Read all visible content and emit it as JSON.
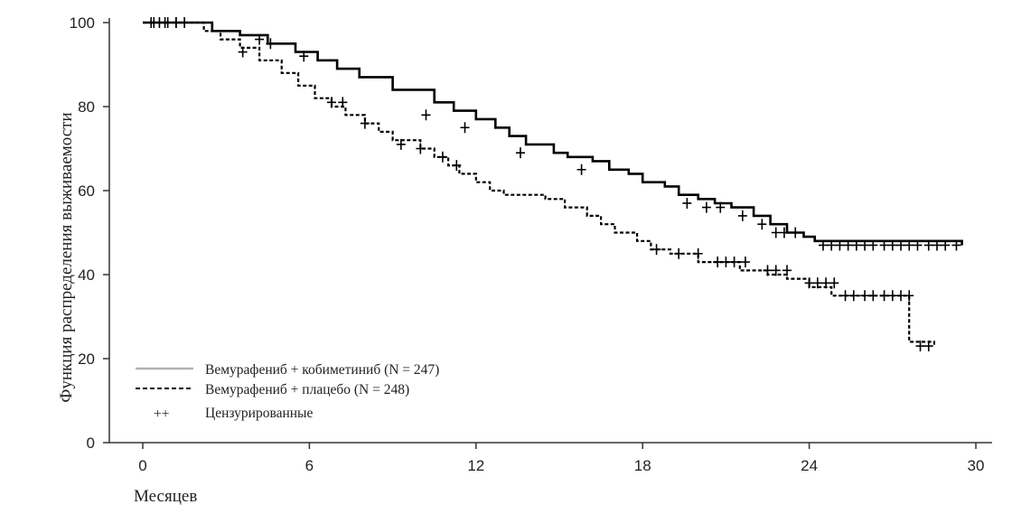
{
  "chart_data": {
    "type": "line",
    "ylabel": "Функция распределения выживаемости",
    "xlabel": "Месяцев",
    "xlim": [
      0,
      30
    ],
    "ylim": [
      0,
      100
    ],
    "x_ticks": [
      "0",
      "6",
      "12",
      "18",
      "24",
      "30"
    ],
    "y_ticks": [
      "0",
      "20",
      "40",
      "60",
      "80",
      "100"
    ],
    "grid": false,
    "legend_position": "bottom-left",
    "legend": {
      "censored_symbol": "++",
      "censored_label": "Цензурированные"
    },
    "series": [
      {
        "name": "Вемурафениб + кобиметиниб (N = 247)",
        "style": "solid",
        "color": "#000000",
        "x": [
          0,
          2,
          2.5,
          3.5,
          4.5,
          5.5,
          6.3,
          7.0,
          7.8,
          9.0,
          10.5,
          11.2,
          12.0,
          12.7,
          13.2,
          13.8,
          14.8,
          15.3,
          16.2,
          16.8,
          17.5,
          18.0,
          18.8,
          19.3,
          20.0,
          20.6,
          21.2,
          22.0,
          22.6,
          23.2,
          23.8,
          24.2,
          29.5
        ],
        "y": [
          100,
          100,
          98,
          97,
          95,
          93,
          91,
          89,
          87,
          84,
          81,
          79,
          77,
          75,
          73,
          71,
          69,
          68,
          67,
          65,
          64,
          62,
          61,
          59,
          58,
          57,
          56,
          54,
          52,
          50,
          49,
          48,
          47
        ],
        "censor_x": [
          0.3,
          0.6,
          0.9,
          1.2,
          1.5,
          4.2,
          4.6,
          5.8,
          10.2,
          11.6,
          13.6,
          15.8,
          19.6,
          20.3,
          20.8,
          21.6,
          22.3,
          22.8,
          23.1,
          23.5,
          24.5,
          24.8,
          25.1,
          25.4,
          25.7,
          26.0,
          26.3,
          26.7,
          27.0,
          27.3,
          27.6,
          27.9,
          28.3,
          28.6,
          28.9,
          29.3
        ],
        "censor_y": [
          100,
          100,
          100,
          100,
          100,
          96,
          95,
          92,
          78,
          75,
          69,
          65,
          57,
          56,
          56,
          54,
          52,
          50,
          50,
          50,
          47,
          47,
          47,
          47,
          47,
          47,
          47,
          47,
          47,
          47,
          47,
          47,
          47,
          47,
          47,
          47
        ]
      },
      {
        "name": "Вемурафениб + плацебо (N = 248)",
        "style": "dashed",
        "color": "#000000",
        "x": [
          0,
          1.8,
          2.2,
          2.8,
          3.5,
          4.2,
          5.0,
          5.6,
          6.2,
          6.8,
          7.3,
          8.0,
          8.5,
          9.0,
          10.0,
          10.5,
          11.0,
          11.4,
          12.0,
          12.5,
          13.0,
          14.0,
          14.5,
          15.2,
          16.0,
          16.5,
          17.0,
          17.8,
          18.3,
          19.0,
          20.0,
          21.5,
          22.5,
          23.2,
          24.0,
          24.8,
          25.5,
          26.5,
          27.5,
          27.6,
          28.0,
          28.5
        ],
        "y": [
          100,
          100,
          98,
          96,
          94,
          91,
          88,
          85,
          82,
          80,
          78,
          76,
          74,
          72,
          70,
          68,
          66,
          64,
          62,
          60,
          59,
          59,
          58,
          56,
          54,
          52,
          50,
          48,
          46,
          45,
          43,
          41,
          40,
          39,
          37,
          35,
          35,
          35,
          35,
          24,
          24,
          23
        ],
        "censor_x": [
          0.4,
          0.8,
          1.2,
          3.6,
          6.8,
          7.2,
          8.0,
          9.3,
          10.0,
          10.8,
          11.3,
          18.5,
          19.3,
          20.0,
          20.7,
          21.0,
          21.3,
          21.7,
          22.5,
          22.8,
          23.2,
          24.0,
          24.3,
          24.6,
          24.9,
          25.3,
          25.6,
          26.0,
          26.3,
          26.7,
          27.0,
          27.3,
          27.6,
          28.0,
          28.3
        ],
        "censor_y": [
          100,
          100,
          100,
          93,
          81,
          81,
          76,
          71,
          70,
          68,
          66,
          46,
          45,
          45,
          43,
          43,
          43,
          43,
          41,
          41,
          41,
          38,
          38,
          38,
          38,
          35,
          35,
          35,
          35,
          35,
          35,
          35,
          35,
          23,
          23
        ]
      }
    ]
  }
}
